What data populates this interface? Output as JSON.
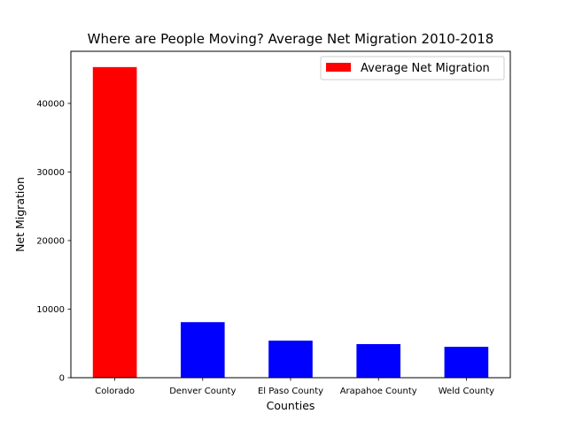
{
  "chart_data": {
    "type": "bar",
    "title": "Where are People Moving? Average Net Migration 2010-2018",
    "xlabel": "Counties",
    "ylabel": "Net Migration",
    "categories": [
      "Colorado",
      "Denver County",
      "El Paso County",
      "Arapahoe County",
      "Weld County"
    ],
    "series": [
      {
        "name": "Average Net Migration",
        "values": [
          45300,
          8100,
          5400,
          4900,
          4500
        ]
      }
    ],
    "bar_colors": [
      "#ff0000",
      "#0000ff",
      "#0000ff",
      "#0000ff",
      "#0000ff"
    ],
    "legend_color": "#ff0000",
    "ylim": [
      0,
      47600
    ],
    "yticks": [
      0,
      10000,
      20000,
      30000,
      40000
    ],
    "legend_position": "top-right",
    "grid": false
  }
}
